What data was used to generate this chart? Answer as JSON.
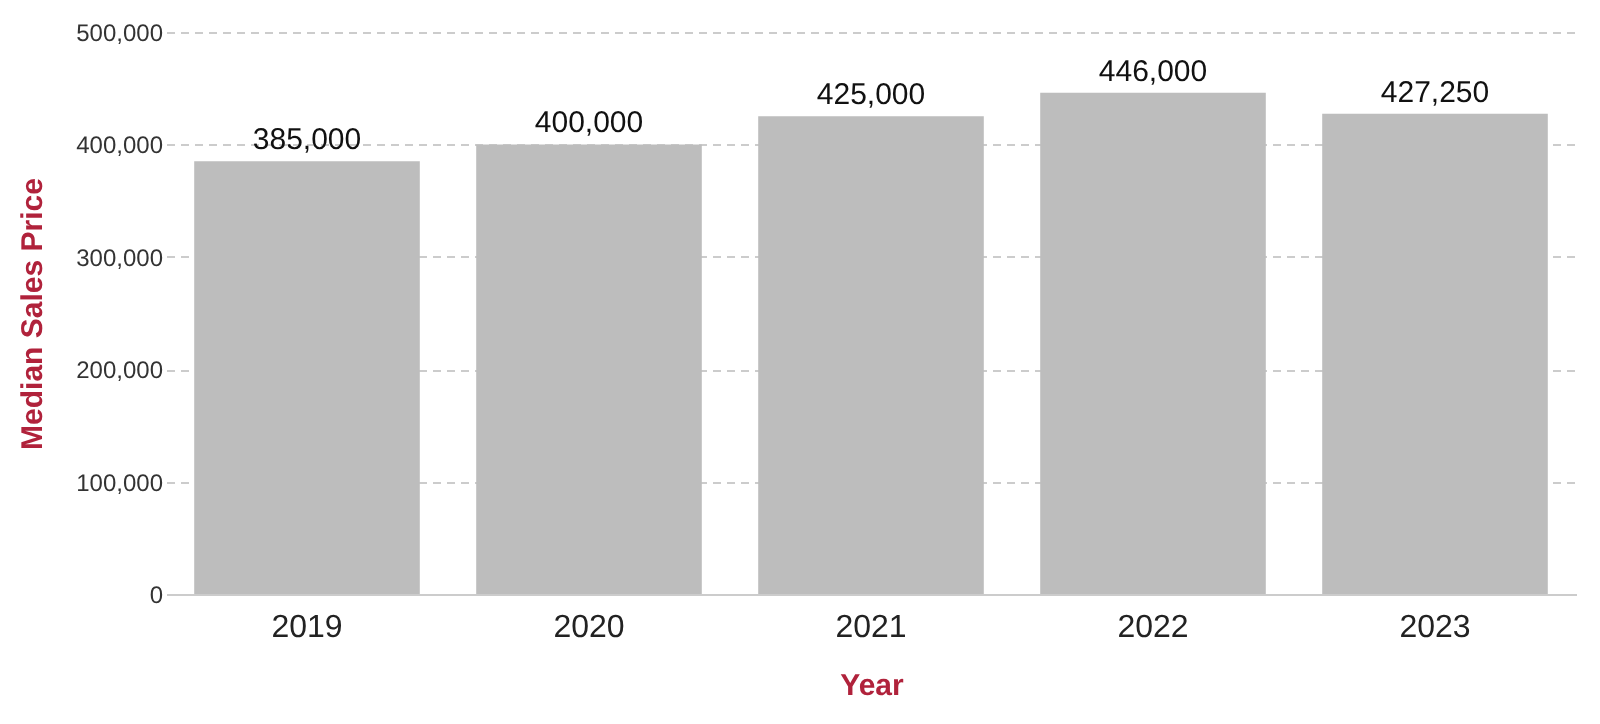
{
  "chart_data": {
    "type": "bar",
    "xlabel": "Year",
    "ylabel": "Median Sales Price",
    "categories": [
      "2019",
      "2020",
      "2021",
      "2022",
      "2023"
    ],
    "values": [
      385000,
      400000,
      425000,
      446000,
      427250
    ],
    "color": "#bdbdbd",
    "value_labels": [
      "385,000",
      "400,000",
      "425,000",
      "446,000",
      "427,250"
    ],
    "ylim": [
      0,
      500000
    ],
    "yticks": [
      0,
      {
        "value": 100000,
        "label": "100,000"
      },
      {
        "value": 200000,
        "label": "200,000"
      },
      {
        "value": 300000,
        "label": "300,000"
      },
      {
        "value": 400000,
        "label": "400,000"
      },
      {
        "value": 500000,
        "label": "500,000"
      }
    ],
    "grid": "y"
  }
}
